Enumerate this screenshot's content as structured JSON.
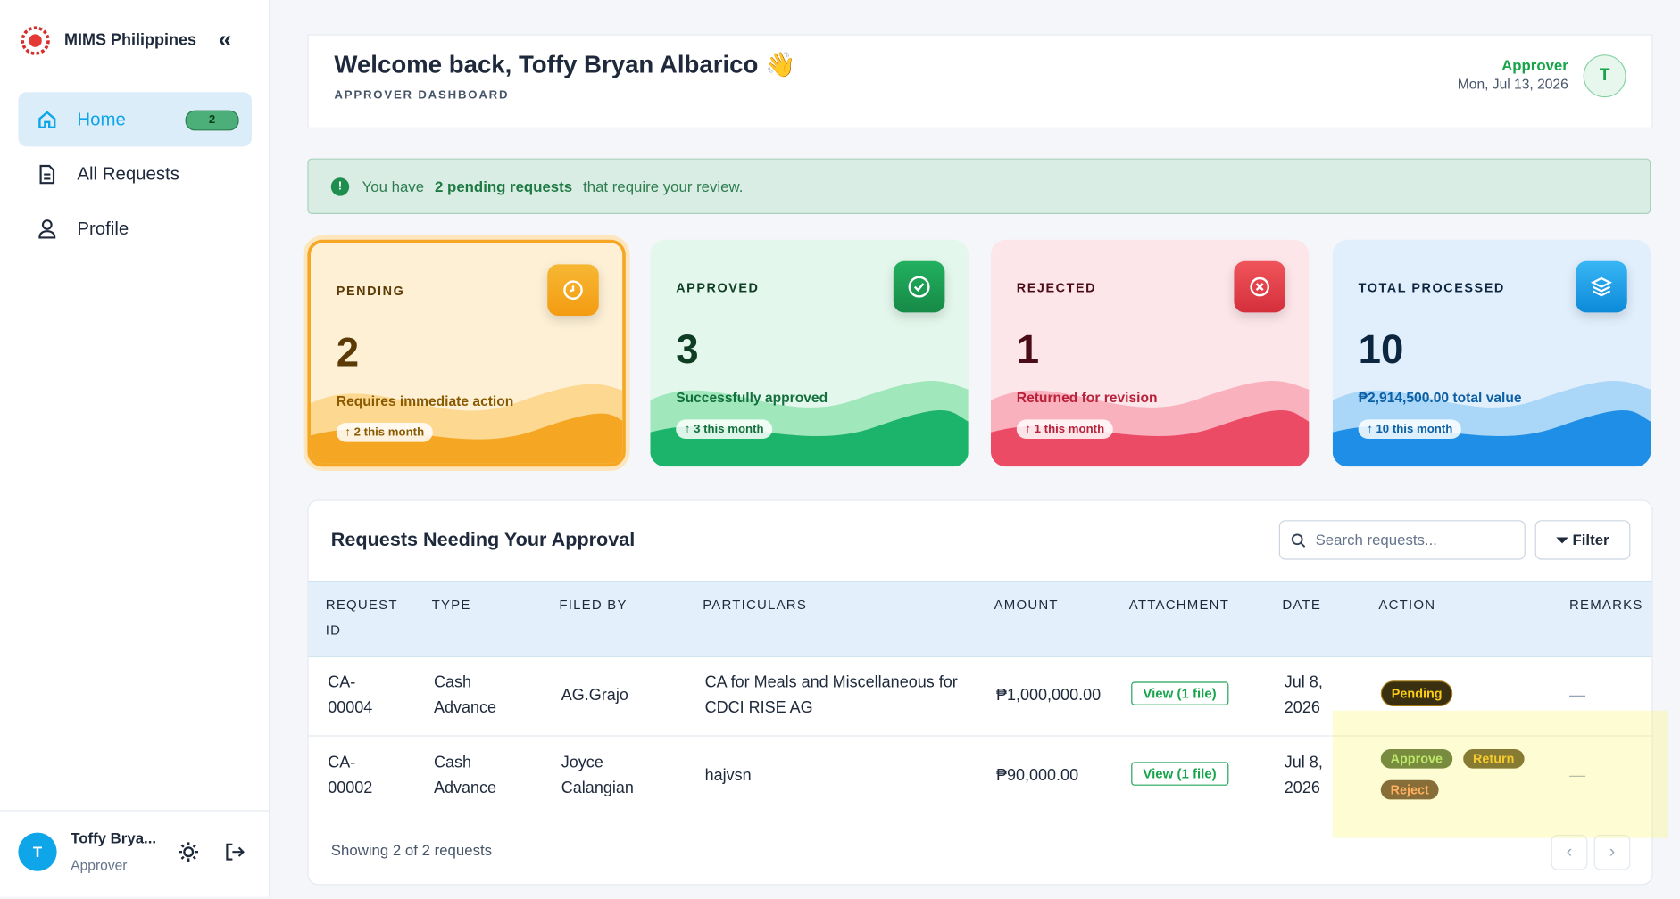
{
  "sidebar": {
    "brand": "MIMS Philippines",
    "nav": [
      {
        "label": "Home",
        "badge": 2
      },
      {
        "label": "All Requests"
      },
      {
        "label": "Profile"
      }
    ],
    "user": {
      "initial": "T",
      "name": "Toffy Brya...",
      "role": "Approver"
    }
  },
  "header": {
    "title": "Welcome back, Toffy Bryan Albarico 👋",
    "subtitle": "APPROVER DASHBOARD",
    "role": "Approver",
    "date": "Mon, Jul 13, 2026",
    "avatar": "T"
  },
  "alert": {
    "before": "You have",
    "count": "2 pending requests",
    "after": "that require your review."
  },
  "stats": [
    {
      "label": "PENDING",
      "value": 2,
      "desc": "Requires immediate action",
      "trend": "↑ 2 this month"
    },
    {
      "label": "APPROVED",
      "value": 3,
      "desc": "Successfully approved",
      "trend": "↑ 3 this month"
    },
    {
      "label": "REJECTED",
      "value": 1,
      "desc": "Returned for revision",
      "trend": "↑ 1 this month"
    },
    {
      "label": "TOTAL PROCESSED",
      "value": 10,
      "desc": "₱2,914,500.00 total value",
      "trend": "↑ 10 this month"
    }
  ],
  "table": {
    "title": "Requests Needing Your Approval",
    "search_placeholder": "Search requests...",
    "filter": "Filter",
    "columns": [
      "REQUEST ID",
      "TYPE",
      "FILED BY",
      "PARTICULARS",
      "AMOUNT",
      "ATTACHMENT",
      "DATE",
      "ACTION",
      "REMARKS"
    ],
    "rows": [
      {
        "id": "CA-00004",
        "type": "Cash Advance",
        "filed_by": "AG.Grajo",
        "particulars": "CA for Meals and Miscellaneous for CDCI RISE AG",
        "amount": "₱1,000,000.00",
        "attachment": "View (1 file)",
        "date": "Jul 8, 2026",
        "action": {
          "status": "Pending"
        },
        "remarks": "—"
      },
      {
        "id": "CA-00002",
        "type": "Cash Advance",
        "filed_by": "Joyce Calangian",
        "particulars": "hajvsn",
        "amount": "₱90,000.00",
        "attachment": "View (1 file)",
        "date": "Jul 8, 2026",
        "action": {
          "buttons": [
            "Approve",
            "Return",
            "Reject"
          ]
        },
        "remarks": "—"
      }
    ],
    "footer": "Showing 2 of 2 requests",
    "prev": "‹",
    "next": "›"
  }
}
